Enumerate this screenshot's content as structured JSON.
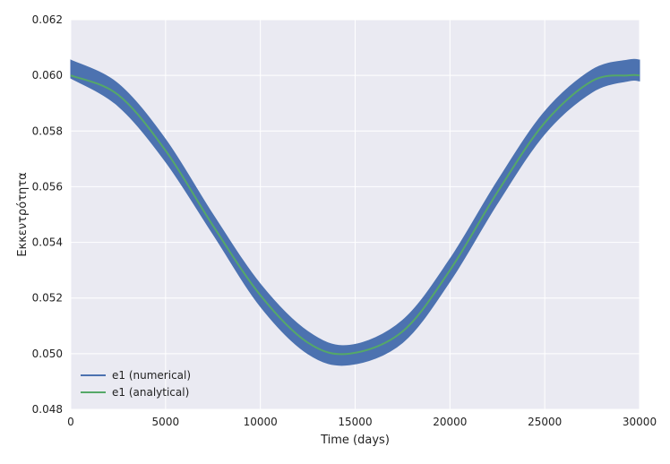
{
  "chart_data": {
    "type": "line",
    "xlabel": "Time (days)",
    "ylabel": "Εκκεντρότητα",
    "xlim": [
      0,
      30000
    ],
    "ylim": [
      0.048,
      0.062
    ],
    "xticks": [
      0,
      5000,
      10000,
      15000,
      20000,
      25000,
      30000
    ],
    "yticks": [
      0.048,
      0.05,
      0.052,
      0.054,
      0.056,
      0.058,
      0.06,
      0.062
    ],
    "xtick_labels": [
      "0",
      "5000",
      "10000",
      "15000",
      "20000",
      "25000",
      "30000"
    ],
    "ytick_labels": [
      "0.048",
      "0.050",
      "0.052",
      "0.054",
      "0.056",
      "0.058",
      "0.060",
      "0.062"
    ],
    "grid": true,
    "legend_position": "bottom-left",
    "series": [
      {
        "name": "e1 (numerical)",
        "color": "#4c72b0",
        "style": "band",
        "x": [
          0,
          2500,
          5000,
          7500,
          10000,
          12500,
          14700,
          17500,
          20000,
          22500,
          25000,
          27500,
          29400,
          30000
        ],
        "y_upper": [
          0.06055,
          0.0597,
          0.0577,
          0.055,
          0.0525,
          0.0508,
          0.0503,
          0.0512,
          0.0534,
          0.0562,
          0.0587,
          0.0602,
          0.06055,
          0.06055
        ],
        "y_lower": [
          0.0599,
          0.0589,
          0.0569,
          0.0543,
          0.0517,
          0.05,
          0.0496,
          0.0504,
          0.0526,
          0.0554,
          0.0579,
          0.0594,
          0.0598,
          0.0598
        ]
      },
      {
        "name": "e1 (analytical)",
        "color": "#55a868",
        "style": "line",
        "x": [
          0,
          2500,
          5000,
          7500,
          10000,
          12500,
          14700,
          17500,
          20000,
          22500,
          25000,
          27500,
          29400,
          30000
        ],
        "y": [
          0.06,
          0.0593,
          0.0573,
          0.0546,
          0.0521,
          0.0504,
          0.05,
          0.0508,
          0.053,
          0.0558,
          0.0583,
          0.0598,
          0.06,
          0.06
        ]
      }
    ]
  }
}
